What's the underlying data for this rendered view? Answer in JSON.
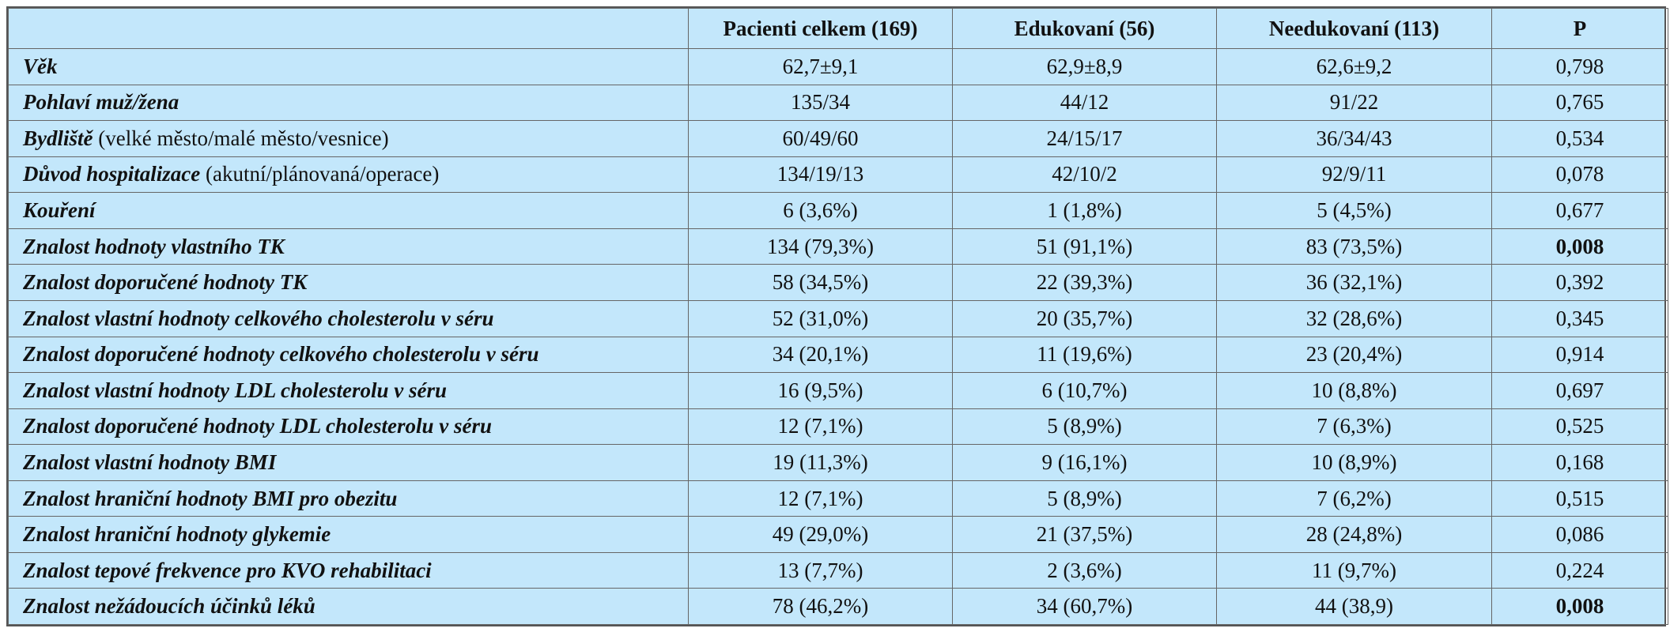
{
  "table": {
    "headers": [
      "",
      "Pacienti celkem (169)",
      "Edukovaní  (56)",
      "Needukovaní (113)",
      "P"
    ],
    "rows": [
      {
        "label_bold": "Věk",
        "label_rest": "",
        "total": "62,7±9,1",
        "edu": "62,9±8,9",
        "nonedu": "62,6±9,2",
        "p": "0,798",
        "p_bold": false
      },
      {
        "label_bold": "Pohlaví  muž/žena",
        "label_rest": "",
        "total": "135/34",
        "edu": "44/12",
        "nonedu": "91/22",
        "p": "0,765",
        "p_bold": false
      },
      {
        "label_bold": "Bydliště",
        "label_rest": " (velké město/malé město/vesnice)",
        "total": "60/49/60",
        "edu": "24/15/17",
        "nonedu": "36/34/43",
        "p": "0,534",
        "p_bold": false
      },
      {
        "label_bold": "Důvod hospitalizace",
        "label_rest": " (akutní/plánovaná/operace)",
        "total": "134/19/13",
        "edu": "42/10/2",
        "nonedu": "92/9/11",
        "p": "0,078",
        "p_bold": false
      },
      {
        "label_bold": "Kouření",
        "label_rest": "",
        "total": "6 (3,6%)",
        "edu": "1 (1,8%)",
        "nonedu": "5 (4,5%)",
        "p": "0,677",
        "p_bold": false
      },
      {
        "label_bold": "Znalost hodnoty vlastního TK",
        "label_rest": "",
        "total": "134 (79,3%)",
        "edu": "51 (91,1%)",
        "nonedu": "83 (73,5%)",
        "p": "0,008",
        "p_bold": true
      },
      {
        "label_bold": "Znalost doporučené hodnoty TK",
        "label_rest": "",
        "total": "58 (34,5%)",
        "edu": "22 (39,3%)",
        "nonedu": "36 (32,1%)",
        "p": "0,392",
        "p_bold": false
      },
      {
        "label_bold": "Znalost vlastní hodnoty celkového cholesterolu v séru",
        "label_rest": "",
        "total": "52 (31,0%)",
        "edu": "20 (35,7%)",
        "nonedu": "32 (28,6%)",
        "p": "0,345",
        "p_bold": false
      },
      {
        "label_bold": "Znalost doporučené hodnoty celkového cholesterolu v séru",
        "label_rest": "",
        "total": "34 (20,1%)",
        "edu": "11 (19,6%)",
        "nonedu": "23 (20,4%)",
        "p": "0,914",
        "p_bold": false
      },
      {
        "label_bold": "Znalost vlastní hodnoty LDL cholesterolu v séru",
        "label_rest": "",
        "total": "16 (9,5%)",
        "edu": "6 (10,7%)",
        "nonedu": "10 (8,8%)",
        "p": "0,697",
        "p_bold": false
      },
      {
        "label_bold": "Znalost doporučené hodnoty LDL cholesterolu v séru",
        "label_rest": "",
        "total": "12 (7,1%)",
        "edu": "5 (8,9%)",
        "nonedu": "7 (6,3%)",
        "p": "0,525",
        "p_bold": false
      },
      {
        "label_bold": "Znalost vlastní hodnoty BMI",
        "label_rest": "",
        "total": "19 (11,3%)",
        "edu": "9 (16,1%)",
        "nonedu": "10 (8,9%)",
        "p": "0,168",
        "p_bold": false
      },
      {
        "label_bold": "Znalost hraniční hodnoty BMI pro obezitu",
        "label_rest": "",
        "total": "12 (7,1%)",
        "edu": "5 (8,9%)",
        "nonedu": "7 (6,2%)",
        "p": "0,515",
        "p_bold": false
      },
      {
        "label_bold": "Znalost hraniční hodnoty glykemie",
        "label_rest": "",
        "total": "49 (29,0%)",
        "edu": "21 (37,5%)",
        "nonedu": "28 (24,8%)",
        "p": "0,086",
        "p_bold": false
      },
      {
        "label_bold": "Znalost tepové frekvence pro KVO rehabilitaci",
        "label_rest": "",
        "total": "13 (7,7%)",
        "edu": "2 (3,6%)",
        "nonedu": "11 (9,7%)",
        "p": "0,224",
        "p_bold": false
      },
      {
        "label_bold": "Znalost nežádoucích účinků léků",
        "label_rest": "",
        "total": "78 (46,2%)",
        "edu": "34 (60,7%)",
        "nonedu": "44 (38,9)",
        "p": "0,008",
        "p_bold": true
      }
    ]
  },
  "colors": {
    "cell_background": "#c3e7fb",
    "border": "#666666",
    "text": "#111111"
  }
}
